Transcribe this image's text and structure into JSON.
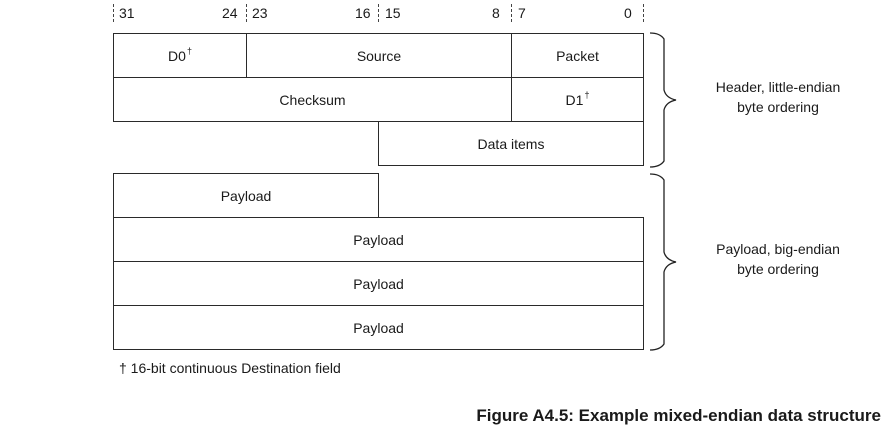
{
  "bit_labels": {
    "b31": "31",
    "b24": "24",
    "b23": "23",
    "b16": "16",
    "b15": "15",
    "b8": "8",
    "b7": "7",
    "b0": "0"
  },
  "header": {
    "d0": "D0",
    "d0_mark": "†",
    "source": "Source",
    "packet": "Packet",
    "checksum": "Checksum",
    "d1": "D1",
    "d1_mark": "†",
    "data_items": "Data items"
  },
  "payload": {
    "row1": "Payload",
    "row2": "Payload",
    "row3": "Payload",
    "row4": "Payload"
  },
  "brace_labels": {
    "header_line1": "Header, little-endian",
    "header_line2": "byte ordering",
    "payload_line1": "Payload, big-endian",
    "payload_line2": "byte ordering"
  },
  "footnote": "† 16-bit continuous Destination field",
  "caption": "Figure A4.5: Example mixed-endian data structure"
}
